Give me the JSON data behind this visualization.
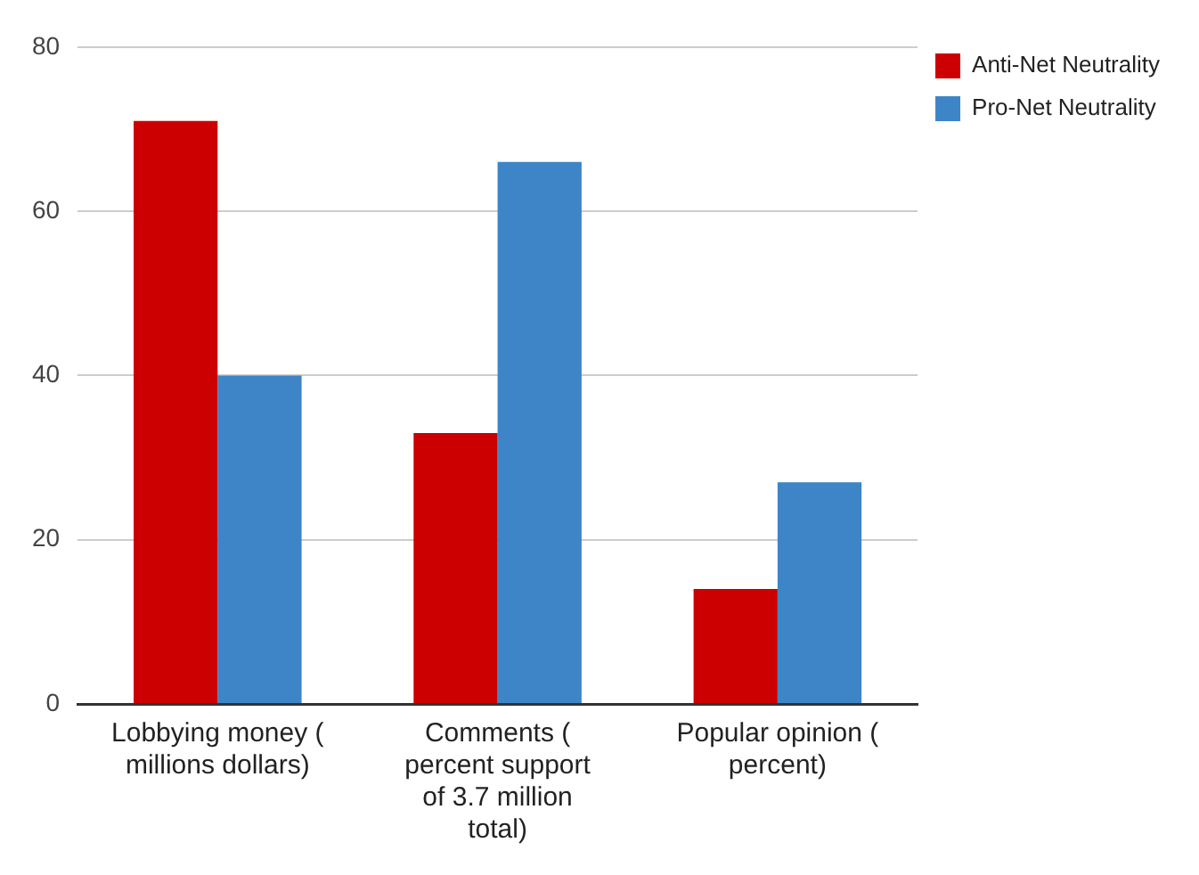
{
  "chart_data": {
    "type": "bar",
    "categories": [
      "Lobbying money ( millions dollars)",
      "Comments ( percent support of 3.7 million total)",
      "Popular opinion ( percent)"
    ],
    "series": [
      {
        "name": "Anti-Net Neutrality",
        "color": "#cc0000",
        "values": [
          71,
          33,
          14
        ]
      },
      {
        "name": "Pro-Net Neutrality",
        "color": "#3d85c6",
        "values": [
          40,
          66,
          27
        ]
      }
    ],
    "ylim": [
      0,
      80
    ],
    "yticks": [
      0,
      20,
      40,
      60,
      80
    ],
    "grid": "y",
    "legend": "top right"
  }
}
